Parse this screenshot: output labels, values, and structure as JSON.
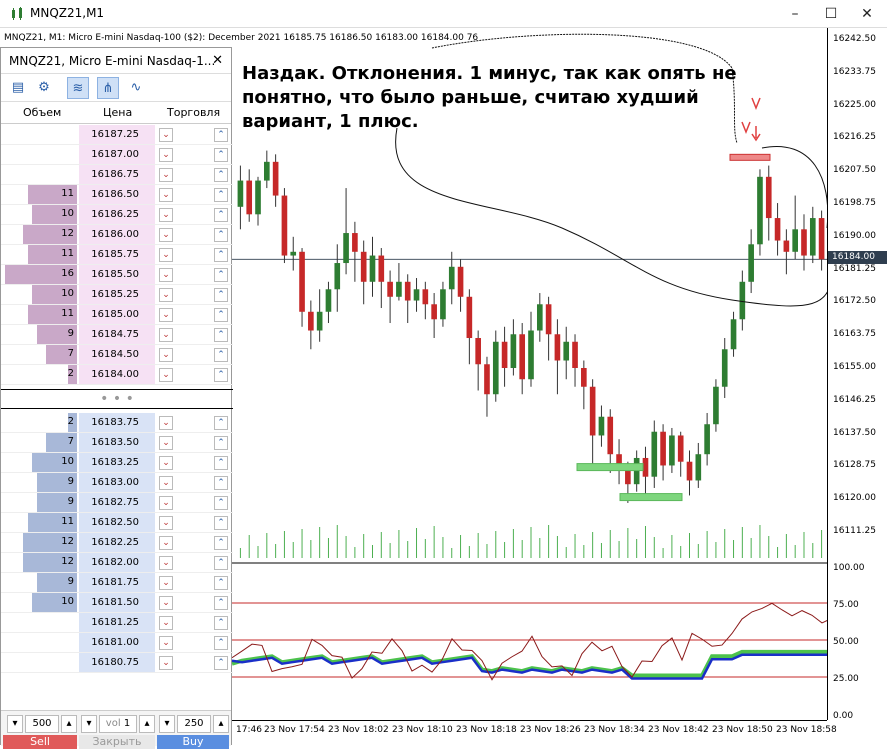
{
  "window": {
    "title": "MNQZ21,M1",
    "minimize": "–",
    "maximize": "☐",
    "close": "✕"
  },
  "chart": {
    "info_line": "MNQZ21, M1:  Micro E-mini Nasdaq-100 ($2): December 2021  16185.75  16186.50  16183.00  16184.00  76",
    "current_price": "16184.00",
    "annotation": "Наздак. Отклонения. 1 минус, так как опять не понятно, что было раньше, считаю худший вариант, 1 плюс.",
    "price_axis": [
      "16242.50",
      "16233.75",
      "16225.00",
      "16216.25",
      "16207.50",
      "16198.75",
      "16190.00",
      "16181.25",
      "16172.50",
      "16163.75",
      "16155.00",
      "16146.25",
      "16137.50",
      "16128.75",
      "16120.00",
      "16111.25"
    ],
    "osc_axis": [
      "100.00",
      "75.00",
      "50.00",
      "25.00",
      "0.00"
    ],
    "time_axis": [
      "17:46",
      "23 Nov 17:54",
      "23 Nov 18:02",
      "23 Nov 18:10",
      "23 Nov 18:18",
      "23 Nov 18:26",
      "23 Nov 18:34",
      "23 Nov 18:42",
      "23 Nov 18:50",
      "23 Nov 18:58"
    ],
    "colors": {
      "bull": "#2e7d32",
      "bear": "#c62828",
      "zone": "#7ed67e",
      "level_line": "#c62828"
    }
  },
  "dom": {
    "title": "MNQZ21, Micro E-mini Nasdaq-1...",
    "close": "✕",
    "toolbar_icons": [
      "chart-icon",
      "settings-icon",
      "depth-icon",
      "column-icon",
      "tick-icon"
    ],
    "headers": {
      "volume": "Объем",
      "price": "Цена",
      "trade": "Торговля"
    },
    "asks": [
      {
        "vol": "",
        "price": "16187.25"
      },
      {
        "vol": "",
        "price": "16187.00"
      },
      {
        "vol": "",
        "price": "16186.75"
      },
      {
        "vol": "11",
        "price": "16186.50"
      },
      {
        "vol": "10",
        "price": "16186.25"
      },
      {
        "vol": "12",
        "price": "16186.00"
      },
      {
        "vol": "11",
        "price": "16185.75"
      },
      {
        "vol": "16",
        "price": "16185.50"
      },
      {
        "vol": "10",
        "price": "16185.25"
      },
      {
        "vol": "11",
        "price": "16185.00"
      },
      {
        "vol": "9",
        "price": "16184.75"
      },
      {
        "vol": "7",
        "price": "16184.50"
      },
      {
        "vol": "2",
        "price": "16184.00"
      }
    ],
    "separator": "• • •",
    "bids": [
      {
        "vol": "2",
        "price": "16183.75"
      },
      {
        "vol": "7",
        "price": "16183.50"
      },
      {
        "vol": "10",
        "price": "16183.25"
      },
      {
        "vol": "9",
        "price": "16183.00"
      },
      {
        "vol": "9",
        "price": "16182.75"
      },
      {
        "vol": "11",
        "price": "16182.50"
      },
      {
        "vol": "12",
        "price": "16182.25"
      },
      {
        "vol": "12",
        "price": "16182.00"
      },
      {
        "vol": "9",
        "price": "16181.75"
      },
      {
        "vol": "10",
        "price": "16181.50"
      },
      {
        "vol": "",
        "price": "16181.25"
      },
      {
        "vol": "",
        "price": "16181.00"
      },
      {
        "vol": "",
        "price": "16180.75"
      }
    ],
    "bottom": {
      "left_value": "500",
      "vol_label": "vol",
      "vol_value": "1",
      "right_value": "250",
      "sell": "Sell",
      "close": "Закрыть",
      "buy": "Buy"
    }
  }
}
